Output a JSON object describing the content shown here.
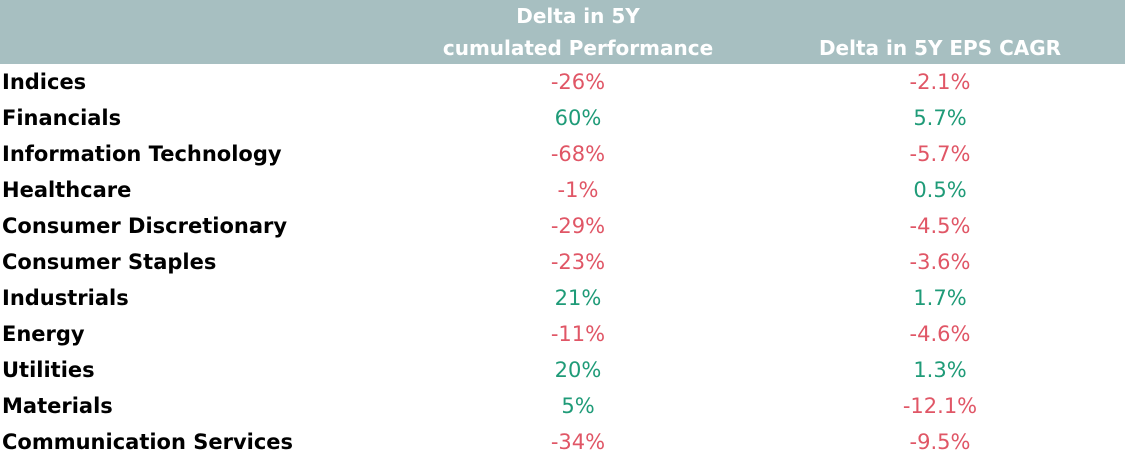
{
  "colors": {
    "header_bg": "#a7bfc1",
    "header_text": "#ffffff",
    "positive": "#1f9b78",
    "negative": "#e05666"
  },
  "chart_data": {
    "type": "table",
    "columns": [
      {
        "key": "perf",
        "label_lines": [
          "Delta in 5Y",
          "cumulated Performance"
        ]
      },
      {
        "key": "eps",
        "label_lines": [
          "Delta in 5Y EPS CAGR"
        ]
      }
    ],
    "rows": [
      {
        "label": "Indices",
        "perf": "-26%",
        "eps": "-2.1%"
      },
      {
        "label": "Financials",
        "perf": "60%",
        "eps": "5.7%"
      },
      {
        "label": "Information Technology",
        "perf": "-68%",
        "eps": "-5.7%"
      },
      {
        "label": "Healthcare",
        "perf": "-1%",
        "eps": "0.5%"
      },
      {
        "label": "Consumer Discretionary",
        "perf": "-29%",
        "eps": "-4.5%"
      },
      {
        "label": "Consumer Staples",
        "perf": "-23%",
        "eps": "-3.6%"
      },
      {
        "label": "Industrials",
        "perf": "21%",
        "eps": "1.7%"
      },
      {
        "label": "Energy",
        "perf": "-11%",
        "eps": "-4.6%"
      },
      {
        "label": "Utilities",
        "perf": "20%",
        "eps": "1.3%"
      },
      {
        "label": "Materials",
        "perf": "5%",
        "eps": "-12.1%"
      },
      {
        "label": "Communication Services",
        "perf": "-34%",
        "eps": "-9.5%"
      }
    ]
  }
}
